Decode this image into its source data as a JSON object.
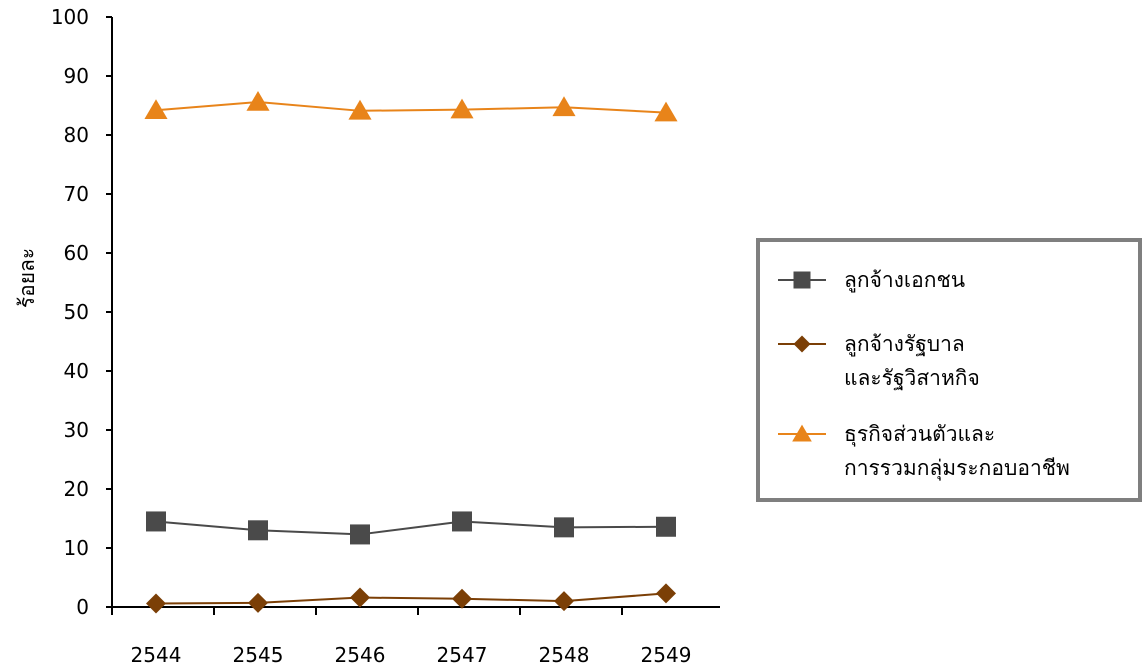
{
  "chart_data": {
    "type": "line",
    "title": "",
    "xlabel": "",
    "ylabel": "ร้อยละ",
    "ylim": [
      0,
      100
    ],
    "yticks": [
      0,
      10,
      20,
      30,
      40,
      50,
      60,
      70,
      80,
      90,
      100
    ],
    "categories": [
      "2544",
      "2545",
      "2546",
      "2547",
      "2548",
      "2549"
    ],
    "grid": false,
    "legend_position": "right",
    "series": [
      {
        "name": "ลูกจ้างเอกชน",
        "name_lines": [
          "ลูกจ้างเอกชน"
        ],
        "values": [
          14.5,
          13.0,
          12.3,
          14.5,
          13.5,
          13.6
        ],
        "color": "#4a4a4a",
        "marker": "square"
      },
      {
        "name": "ลูกจ้างรัฐบาลและรัฐวิสาหกิจ",
        "name_lines": [
          "ลูกจ้างรัฐบาล",
          "และรัฐวิสาหกิจ"
        ],
        "values": [
          0.6,
          0.7,
          1.6,
          1.4,
          1.0,
          2.3
        ],
        "color": "#7b3f06",
        "marker": "diamond"
      },
      {
        "name": "ธุรกิจส่วนตัวและการรวมกลุ่มระกอบอาชีพ",
        "name_lines": [
          "ธุรกิจส่วนตัวและ",
          "การรวมกลุ่มระกอบอาชีพ"
        ],
        "values": [
          84.2,
          85.6,
          84.1,
          84.3,
          84.7,
          83.8
        ],
        "color": "#e8841a",
        "marker": "triangle"
      }
    ]
  }
}
